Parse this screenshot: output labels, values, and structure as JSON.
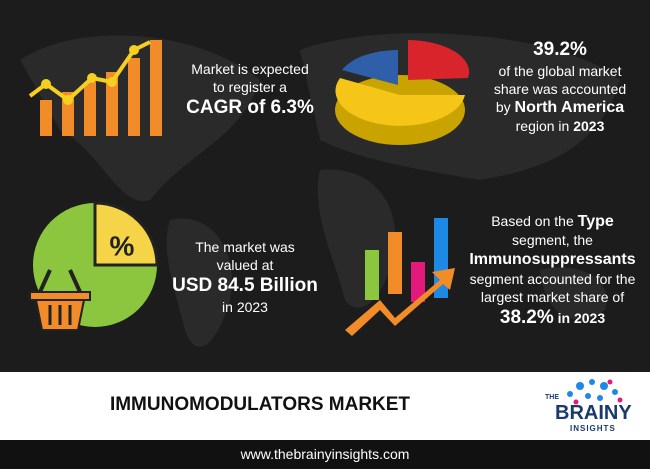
{
  "cagr": {
    "lines": [
      "Market is expected",
      "to register a"
    ],
    "highlight": "CAGR of 6.3%"
  },
  "region": {
    "share": "39.2%",
    "lines": [
      "of the global market",
      "share was accounted"
    ],
    "by": "by",
    "name": "North America",
    "region_in": "region in",
    "year": "2023"
  },
  "value": {
    "lines": [
      "The market was",
      "valued at"
    ],
    "highlight": "USD 84.5 Billion",
    "year": "in 2023"
  },
  "segment": {
    "intro": "Based on the",
    "type": "Type",
    "after": "segment, the",
    "name": "Immunosuppressants",
    "lines": [
      "segment accounted for the",
      "largest market share of"
    ],
    "share": "38.2%",
    "year": "in 2023"
  },
  "icon_percent": "%",
  "title": "IMMUNOMODULATORS MARKET",
  "logo": {
    "top": "THE",
    "middle": "BRAINY",
    "bottom": "INSIGHTS"
  },
  "footer": "www.thebrainyinsights.com"
}
